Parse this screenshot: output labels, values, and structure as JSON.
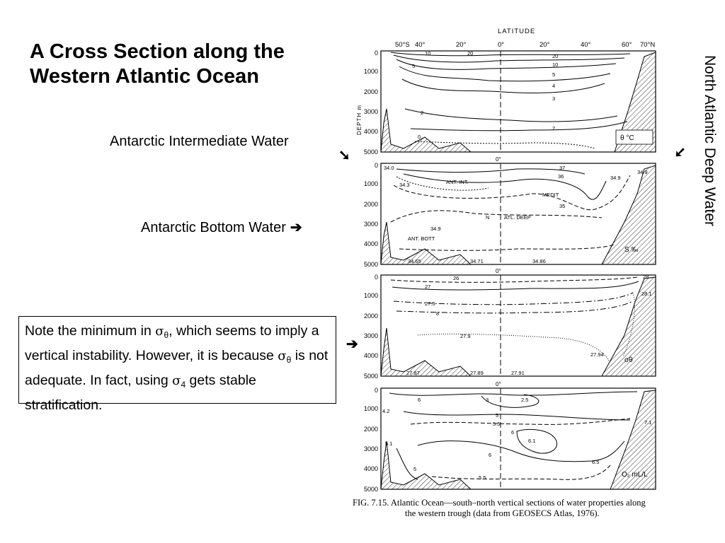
{
  "slide": {
    "title_line1": "A Cross Section along the",
    "title_line2": "Western Atlantic Ocean",
    "label_aiw": "Antarctic Intermediate Water",
    "label_abw": "Antarctic Bottom Water",
    "vertical_label": "North Atlantic Deep Water",
    "arrow_right": "➔",
    "arrow_down_left": "➘",
    "arrow_down_right": "➘",
    "note": {
      "part1": "Note the minimum in ",
      "sym1": "σ",
      "sub1": "θ",
      "part2": ", which seems to imply a vertical instability. However, it is because ",
      "sym2": "σ",
      "sub2": "θ",
      "part3": " is not adequate. In fact, using ",
      "sym3": "σ",
      "sub3": "4",
      "part4": " gets stable stratification."
    }
  },
  "figure": {
    "axis_title": "LATITUDE",
    "lat_ticks": [
      "50°S",
      "40°",
      "20°",
      "0°",
      "20°",
      "40°",
      "60°",
      "70°N"
    ],
    "depth_label": "DEPTH m",
    "depth_ticks": [
      "0",
      "1000",
      "2000",
      "3000",
      "4000",
      "5000"
    ],
    "zero_marker": "0°",
    "panels": [
      {
        "id": "temperature",
        "unit_label": "θ °C",
        "contour_labels": [
          "10",
          "20",
          "5",
          "20",
          "10",
          "5",
          "4",
          "3",
          "2",
          "2",
          "0"
        ]
      },
      {
        "id": "salinity",
        "unit_label": "S ‰",
        "contour_labels": [
          "34.0",
          "37",
          "36",
          "34.3",
          "ANT. INT.",
          "34.9",
          "34.9",
          "MEDIT",
          "35",
          "N",
          "ATL. DEEP",
          "34.9",
          "ANT. BOTT",
          "34.65",
          "34.71",
          "34.86"
        ]
      },
      {
        "id": "density",
        "unit_label": "σθ",
        "contour_labels": [
          "26",
          "27",
          "27.5",
          "8",
          "28",
          "28.1",
          "27.9",
          "27.94",
          "27.87",
          "27.89",
          "27.91"
        ]
      },
      {
        "id": "oxygen",
        "unit_label": "O₂ mL/L",
        "contour_labels": [
          "4.2",
          "6",
          "3",
          "2.5",
          "5",
          "5.5",
          "6",
          "6.1",
          "5.1",
          "6",
          "5",
          "5.5",
          "6.5",
          "7.1"
        ]
      }
    ],
    "caption_line1": "FIG. 7.15. Atlantic Ocean—south–north vertical sections of water properties along",
    "caption_line2": "the western trough (data from GEOSECS Atlas, 1976)."
  }
}
